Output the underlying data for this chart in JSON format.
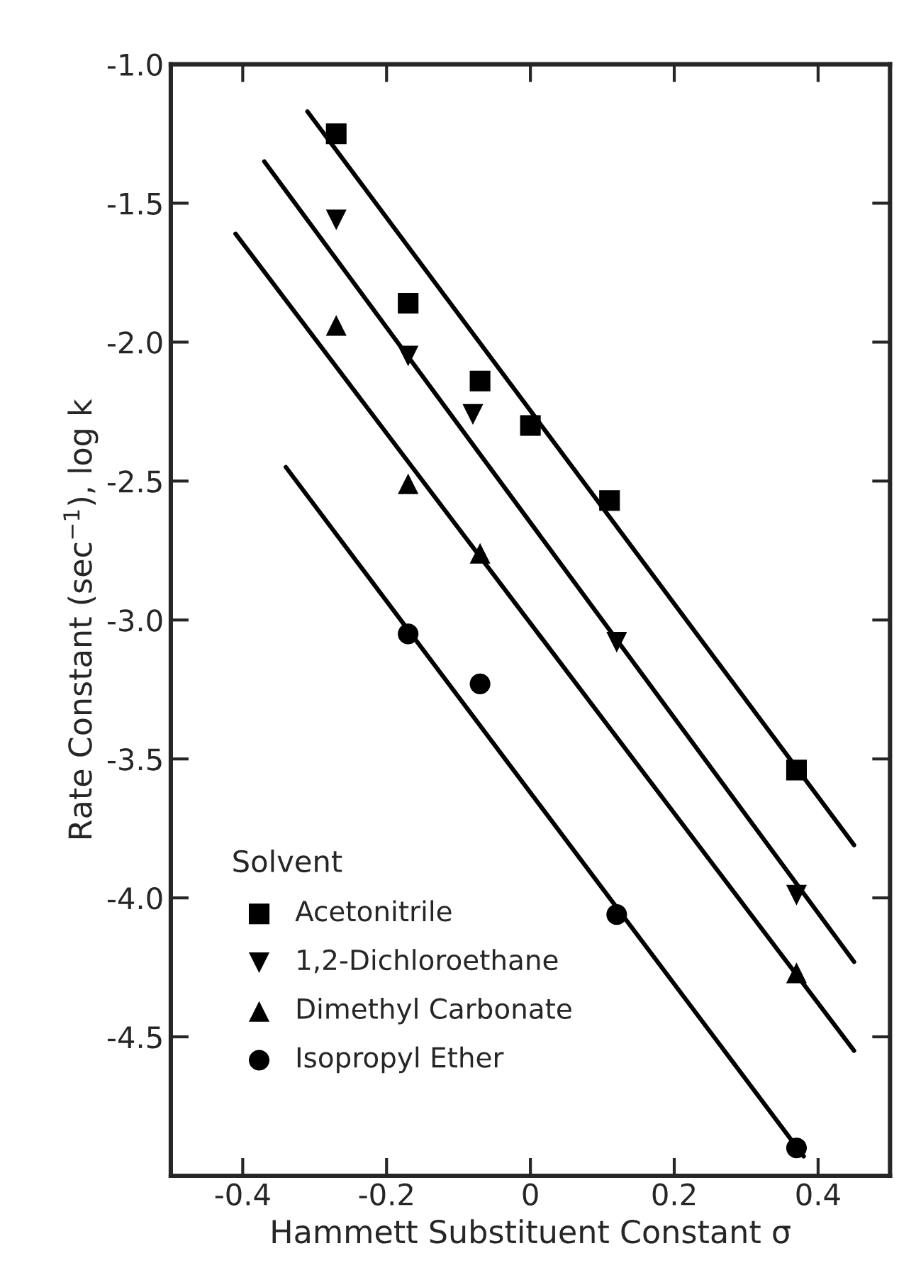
{
  "chart_data": {
    "type": "scatter",
    "xlabel": "Hammett Substituent Constant σ",
    "ylabel": "Rate Constant (sec$^{−1}$), log k",
    "legend_title": "Solvent",
    "xlim": [
      -0.5,
      0.5
    ],
    "xticks": [
      -0.4,
      -0.2,
      0,
      0.2,
      0.4
    ],
    "ylim": [
      -5.0,
      -1.0
    ],
    "yticks": [
      {
        "value": -1.0,
        "label": "-1.0"
      },
      -1.5,
      {
        "value": -2.0,
        "label": "-2.0"
      },
      -2.5,
      {
        "value": -3.0,
        "label": "-3.0"
      },
      -3.5,
      {
        "value": -4.0,
        "label": "-4.0"
      },
      -4.5
    ],
    "grid": false,
    "legend": "bottom left",
    "series": [
      {
        "name": "Acetonitrile",
        "marker": "square",
        "color": "#000000",
        "x": [
          -0.27,
          -0.17,
          -0.07,
          0,
          0.11,
          0.37
        ],
        "values": [
          -1.25,
          -1.86,
          -2.14,
          -2.3,
          -2.57,
          -3.54
        ]
      },
      {
        "name": "1,2-Dichloroethane",
        "marker": "triangle_down",
        "color": "#000000",
        "x": [
          -0.27,
          -0.17,
          -0.08,
          0.12,
          0.37
        ],
        "values": [
          -1.56,
          -2.05,
          -2.26,
          -3.08,
          -3.99
        ]
      },
      {
        "name": "Dimethyl Carbonate",
        "marker": "triangle",
        "color": "#000000",
        "x": [
          -0.27,
          -0.17,
          -0.07,
          0.37
        ],
        "values": [
          -1.94,
          -2.51,
          -2.76,
          -4.27
        ]
      },
      {
        "name": "Isopropyl Ether",
        "marker": "circle",
        "color": "#000000",
        "x": [
          -0.17,
          -0.07,
          0.12,
          0.37
        ],
        "values": [
          -3.05,
          -3.23,
          -4.06,
          -4.9
        ]
      },
      {
        "type": "line",
        "color": "#000000",
        "line_style": "solid",
        "x": [
          -0.31,
          0.45
        ],
        "values": [
          -1.17,
          -3.81
        ]
      },
      {
        "type": "line",
        "color": "#000000",
        "line_style": "solid",
        "x": [
          -0.37,
          0.45
        ],
        "values": [
          -1.35,
          -4.23
        ]
      },
      {
        "type": "line",
        "color": "#000000",
        "line_style": "solid",
        "x": [
          -0.41,
          0.45
        ],
        "values": [
          -1.61,
          -4.55
        ]
      },
      {
        "type": "line",
        "color": "#000000",
        "line_style": "solid",
        "x": [
          -0.34,
          0.38
        ],
        "values": [
          -2.45,
          -4.93
        ]
      }
    ]
  }
}
